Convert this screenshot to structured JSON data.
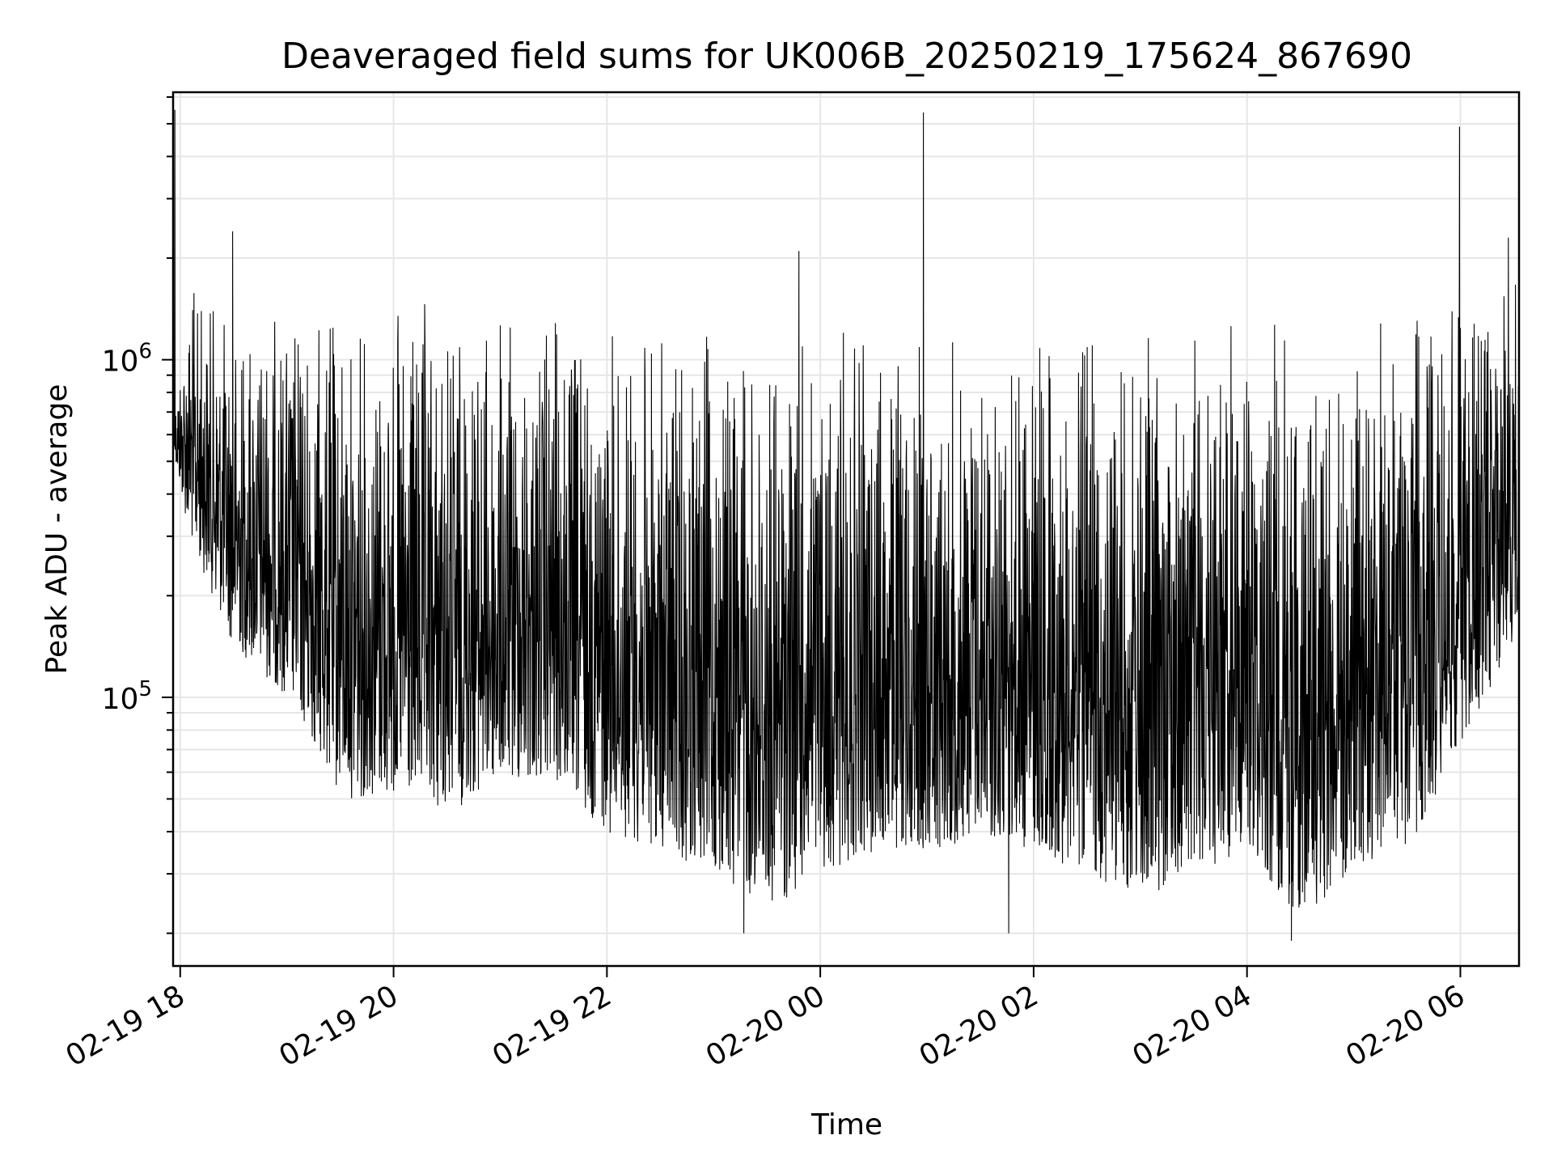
{
  "chart_data": {
    "type": "line",
    "title": "Deaveraged field sums for UK006B_20250219_175624_867690",
    "xlabel": "Time",
    "ylabel": "Peak ADU - average",
    "x_tick_labels": [
      "02-19 18",
      "02-19 20",
      "02-19 22",
      "02-20 00",
      "02-20 02",
      "02-20 04",
      "02-20 06"
    ],
    "x_ticks": [
      "2025-02-19T18:00",
      "2025-02-19T20:00",
      "2025-02-19T22:00",
      "2025-02-20T00:00",
      "2025-02-20T02:00",
      "2025-02-20T04:00",
      "2025-02-20T06:00"
    ],
    "xlim": [
      "2025-02-19T17:56",
      "2025-02-20T06:33"
    ],
    "y_scale": "log",
    "ylim": [
      16000,
      6200000
    ],
    "y_major_ticks": [
      {
        "value": 100000,
        "base": "10",
        "exp": "5"
      },
      {
        "value": 1000000,
        "base": "10",
        "exp": "6"
      }
    ],
    "grid": true,
    "line_color": "#000000",
    "grid_color": "#e6e6e6",
    "series": [
      {
        "x_start": "2025-02-19T17:56:24",
        "x_end": "2025-02-20T06:33:00",
        "envelope": [
          {
            "t": "2025-02-19T17:57",
            "low": 500000,
            "high": 800000
          },
          {
            "t": "2025-02-19T18:05",
            "low": 300000,
            "high": 1800000
          },
          {
            "t": "2025-02-19T18:30",
            "low": 140000,
            "high": 1400000
          },
          {
            "t": "2025-02-19T19:00",
            "low": 100000,
            "high": 1500000
          },
          {
            "t": "2025-02-19T19:30",
            "low": 50000,
            "high": 1500000
          },
          {
            "t": "2025-02-19T20:00",
            "low": 50000,
            "high": 1500000
          },
          {
            "t": "2025-02-19T20:30",
            "low": 45000,
            "high": 1600000
          },
          {
            "t": "2025-02-19T21:00",
            "low": 55000,
            "high": 1400000
          },
          {
            "t": "2025-02-19T21:30",
            "low": 55000,
            "high": 1500000
          },
          {
            "t": "2025-02-19T22:00",
            "low": 40000,
            "high": 1300000
          },
          {
            "t": "2025-02-19T22:30",
            "low": 35000,
            "high": 1300000
          },
          {
            "t": "2025-02-19T23:00",
            "low": 30000,
            "high": 1300000
          },
          {
            "t": "2025-02-19T23:30",
            "low": 23000,
            "high": 1300000
          },
          {
            "t": "2025-02-20T00:00",
            "low": 30000,
            "high": 1200000
          },
          {
            "t": "2025-02-20T00:30",
            "low": 35000,
            "high": 1300000
          },
          {
            "t": "2025-02-20T01:00",
            "low": 35000,
            "high": 1300000
          },
          {
            "t": "2025-02-20T01:30",
            "low": 38000,
            "high": 1300000
          },
          {
            "t": "2025-02-20T02:00",
            "low": 35000,
            "high": 1300000
          },
          {
            "t": "2025-02-20T02:30",
            "low": 30000,
            "high": 1300000
          },
          {
            "t": "2025-02-20T03:00",
            "low": 25000,
            "high": 1300000
          },
          {
            "t": "2025-02-20T03:30",
            "low": 30000,
            "high": 1400000
          },
          {
            "t": "2025-02-20T04:00",
            "low": 35000,
            "high": 1500000
          },
          {
            "t": "2025-02-20T04:30",
            "low": 22000,
            "high": 1400000
          },
          {
            "t": "2025-02-20T05:00",
            "low": 30000,
            "high": 1300000
          },
          {
            "t": "2025-02-20T05:30",
            "low": 35000,
            "high": 1500000
          },
          {
            "t": "2025-02-20T06:00",
            "low": 70000,
            "high": 1600000
          },
          {
            "t": "2025-02-20T06:30",
            "low": 150000,
            "high": 2000000
          }
        ],
        "notable_points": [
          {
            "t": "2025-02-19T17:57:00",
            "value": 5500000
          },
          {
            "t": "2025-02-19T18:29:30",
            "value": 2400000
          },
          {
            "t": "2025-02-19T23:48:00",
            "value": 2100000
          },
          {
            "t": "2025-02-20T00:58:00",
            "value": 5400000
          },
          {
            "t": "2025-02-20T05:59:30",
            "value": 4900000
          },
          {
            "t": "2025-02-20T06:27:00",
            "value": 2300000
          },
          {
            "t": "2025-02-20T01:46:00",
            "value": 20000
          },
          {
            "t": "2025-02-20T04:25:00",
            "value": 19000
          },
          {
            "t": "2025-02-19T23:17:00",
            "value": 20000
          }
        ]
      }
    ]
  }
}
